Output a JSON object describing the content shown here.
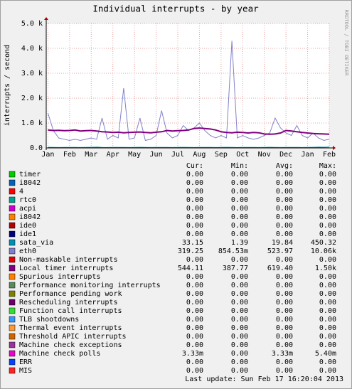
{
  "chart_data": {
    "type": "line",
    "title": "Individual interrupts - by year",
    "y_label": "interrupts / second",
    "watermark": "RRDTOOL / TOBI OETIKER",
    "grid": true,
    "xlim": [
      -0.08,
      13
    ],
    "ylim": [
      0,
      5000
    ],
    "yticks": [
      {
        "value": 0,
        "label": "0.0"
      },
      {
        "value": 1000,
        "label": "1.0 k"
      },
      {
        "value": 2000,
        "label": "2.0 k"
      },
      {
        "value": 3000,
        "label": "3.0 k"
      },
      {
        "value": 4000,
        "label": "4.0 k"
      },
      {
        "value": 5000,
        "label": "5.0 k"
      }
    ],
    "xticks": [
      {
        "value": 0,
        "label": "Jan"
      },
      {
        "value": 1,
        "label": "Feb"
      },
      {
        "value": 2,
        "label": "Mar"
      },
      {
        "value": 3,
        "label": "Apr"
      },
      {
        "value": 4,
        "label": "May"
      },
      {
        "value": 5,
        "label": "Jun"
      },
      {
        "value": 6,
        "label": "Jul"
      },
      {
        "value": 7,
        "label": "Aug"
      },
      {
        "value": 8,
        "label": "Sep"
      },
      {
        "value": 9,
        "label": "Oct"
      },
      {
        "value": 10,
        "label": "Nov"
      },
      {
        "value": 11,
        "label": "Dec"
      },
      {
        "value": 12,
        "label": "Jan"
      },
      {
        "value": 13,
        "label": "Feb"
      }
    ],
    "x": [
      0,
      0.25,
      0.5,
      0.75,
      1,
      1.25,
      1.5,
      1.75,
      2,
      2.25,
      2.5,
      2.75,
      3,
      3.25,
      3.5,
      3.75,
      4,
      4.25,
      4.5,
      4.75,
      5,
      5.25,
      5.5,
      5.75,
      6,
      6.25,
      6.5,
      6.75,
      7,
      7.25,
      7.5,
      7.75,
      8,
      8.25,
      8.5,
      8.75,
      9,
      9.25,
      9.5,
      9.75,
      10,
      10.25,
      10.5,
      10.75,
      11,
      11.25,
      11.5,
      11.75,
      12,
      12.25,
      12.5,
      12.75,
      13
    ],
    "legend_headers": [
      "Cur:",
      "Min:",
      "Avg:",
      "Max:"
    ],
    "series": [
      {
        "name": "timer",
        "color": "#00cc00",
        "stats": [
          "0.00",
          "0.00",
          "0.00",
          "0.00"
        ]
      },
      {
        "name": "i8042",
        "color": "#0066b3",
        "stats": [
          "0.00",
          "0.00",
          "0.00",
          "0.00"
        ]
      },
      {
        "name": "4",
        "color": "#ff0000",
        "stats": [
          "0.00",
          "0.00",
          "0.00",
          "0.00"
        ]
      },
      {
        "name": "rtc0",
        "color": "#00a38f",
        "stats": [
          "0.00",
          "0.00",
          "0.00",
          "0.00"
        ]
      },
      {
        "name": "acpi",
        "color": "#cc00cc",
        "stats": [
          "0.00",
          "0.00",
          "0.00",
          "0.00"
        ]
      },
      {
        "name": "i8042",
        "color": "#ff8000",
        "stats": [
          "0.00",
          "0.00",
          "0.00",
          "0.00"
        ]
      },
      {
        "name": "ide0",
        "color": "#b30000",
        "stats": [
          "0.00",
          "0.00",
          "0.00",
          "0.00"
        ]
      },
      {
        "name": "ide1",
        "color": "#00007d",
        "stats": [
          "0.00",
          "0.00",
          "0.00",
          "0.00"
        ]
      },
      {
        "name": "sata_via",
        "color": "#008fb3",
        "stats": [
          "33.15",
          "1.39",
          "19.84",
          "450.32"
        ],
        "values": [
          25,
          20,
          18,
          20,
          22,
          20,
          18,
          20,
          25,
          30,
          20,
          18,
          20,
          22,
          20,
          18,
          20,
          25,
          20,
          18,
          20,
          22,
          20,
          18,
          20,
          25,
          20,
          18,
          20,
          22,
          20,
          18,
          20,
          25,
          20,
          18,
          20,
          22,
          20,
          18,
          20,
          25,
          20,
          18,
          20,
          22,
          20,
          18,
          20,
          25,
          30,
          28,
          33
        ]
      },
      {
        "name": "eth0",
        "color": "#8080cc",
        "stats": [
          "319.25",
          "854.53m",
          "523.97",
          "10.06k"
        ],
        "values": [
          1400,
          700,
          400,
          350,
          300,
          350,
          300,
          350,
          400,
          350,
          1200,
          350,
          500,
          400,
          2400,
          350,
          400,
          1200,
          300,
          350,
          500,
          1500,
          600,
          400,
          500,
          900,
          700,
          800,
          1000,
          700,
          500,
          400,
          500,
          400,
          4300,
          400,
          500,
          400,
          350,
          400,
          500,
          600,
          1200,
          800,
          600,
          500,
          900,
          500,
          400,
          600,
          400,
          300,
          350
        ]
      },
      {
        "name": "Non-maskable interrupts",
        "color": "#e60000",
        "stats": [
          "0.00",
          "0.00",
          "0.00",
          "0.00"
        ]
      },
      {
        "name": "Local timer interrupts",
        "color": "#800080",
        "stats": [
          "544.11",
          "387.77",
          "619.40",
          "1.50k"
        ],
        "values": [
          720,
          700,
          710,
          690,
          700,
          720,
          680,
          690,
          700,
          680,
          650,
          640,
          620,
          630,
          610,
          620,
          630,
          640,
          620,
          610,
          630,
          650,
          700,
          680,
          690,
          700,
          720,
          780,
          800,
          780,
          760,
          720,
          650,
          620,
          610,
          630,
          620,
          600,
          620,
          610,
          560,
          550,
          560,
          600,
          700,
          680,
          650,
          620,
          600,
          580,
          570,
          560,
          550
        ]
      },
      {
        "name": "Spurious interrupts",
        "color": "#ff8000",
        "stats": [
          "0.00",
          "0.00",
          "0.00",
          "0.00"
        ]
      },
      {
        "name": "Performance monitoring interrupts",
        "color": "#5a8a5a",
        "stats": [
          "0.00",
          "0.00",
          "0.00",
          "0.00"
        ]
      },
      {
        "name": "Performance pending work",
        "color": "#808000",
        "stats": [
          "0.00",
          "0.00",
          "0.00",
          "0.00"
        ]
      },
      {
        "name": "Rescheduling interrupts",
        "color": "#6b006b",
        "stats": [
          "0.00",
          "0.00",
          "0.00",
          "0.00"
        ]
      },
      {
        "name": "Function call interrupts",
        "color": "#33dd33",
        "stats": [
          "0.00",
          "0.00",
          "0.00",
          "0.00"
        ]
      },
      {
        "name": "TLB shootdowns",
        "color": "#3399ff",
        "stats": [
          "0.00",
          "0.00",
          "0.00",
          "0.00"
        ]
      },
      {
        "name": "Thermal event interrupts",
        "color": "#ff9933",
        "stats": [
          "0.00",
          "0.00",
          "0.00",
          "0.00"
        ]
      },
      {
        "name": "Threshold APIC interrupts",
        "color": "#cc6600",
        "stats": [
          "0.00",
          "0.00",
          "0.00",
          "0.00"
        ]
      },
      {
        "name": "Machine check exceptions",
        "color": "#993399",
        "stats": [
          "0.00",
          "0.00",
          "0.00",
          "0.00"
        ]
      },
      {
        "name": "Machine check polls",
        "color": "#ee00cc",
        "stats": [
          "3.33m",
          "0.00",
          "3.33m",
          "5.40m"
        ]
      },
      {
        "name": "ERR",
        "color": "#0044ff",
        "stats": [
          "0.00",
          "0.00",
          "0.00",
          "0.00"
        ]
      },
      {
        "name": "MIS",
        "color": "#ff2222",
        "stats": [
          "0.00",
          "0.00",
          "0.00",
          "0.00"
        ]
      }
    ],
    "last_update": "Last update:  Sun Feb 17 16:20:04 2013"
  }
}
